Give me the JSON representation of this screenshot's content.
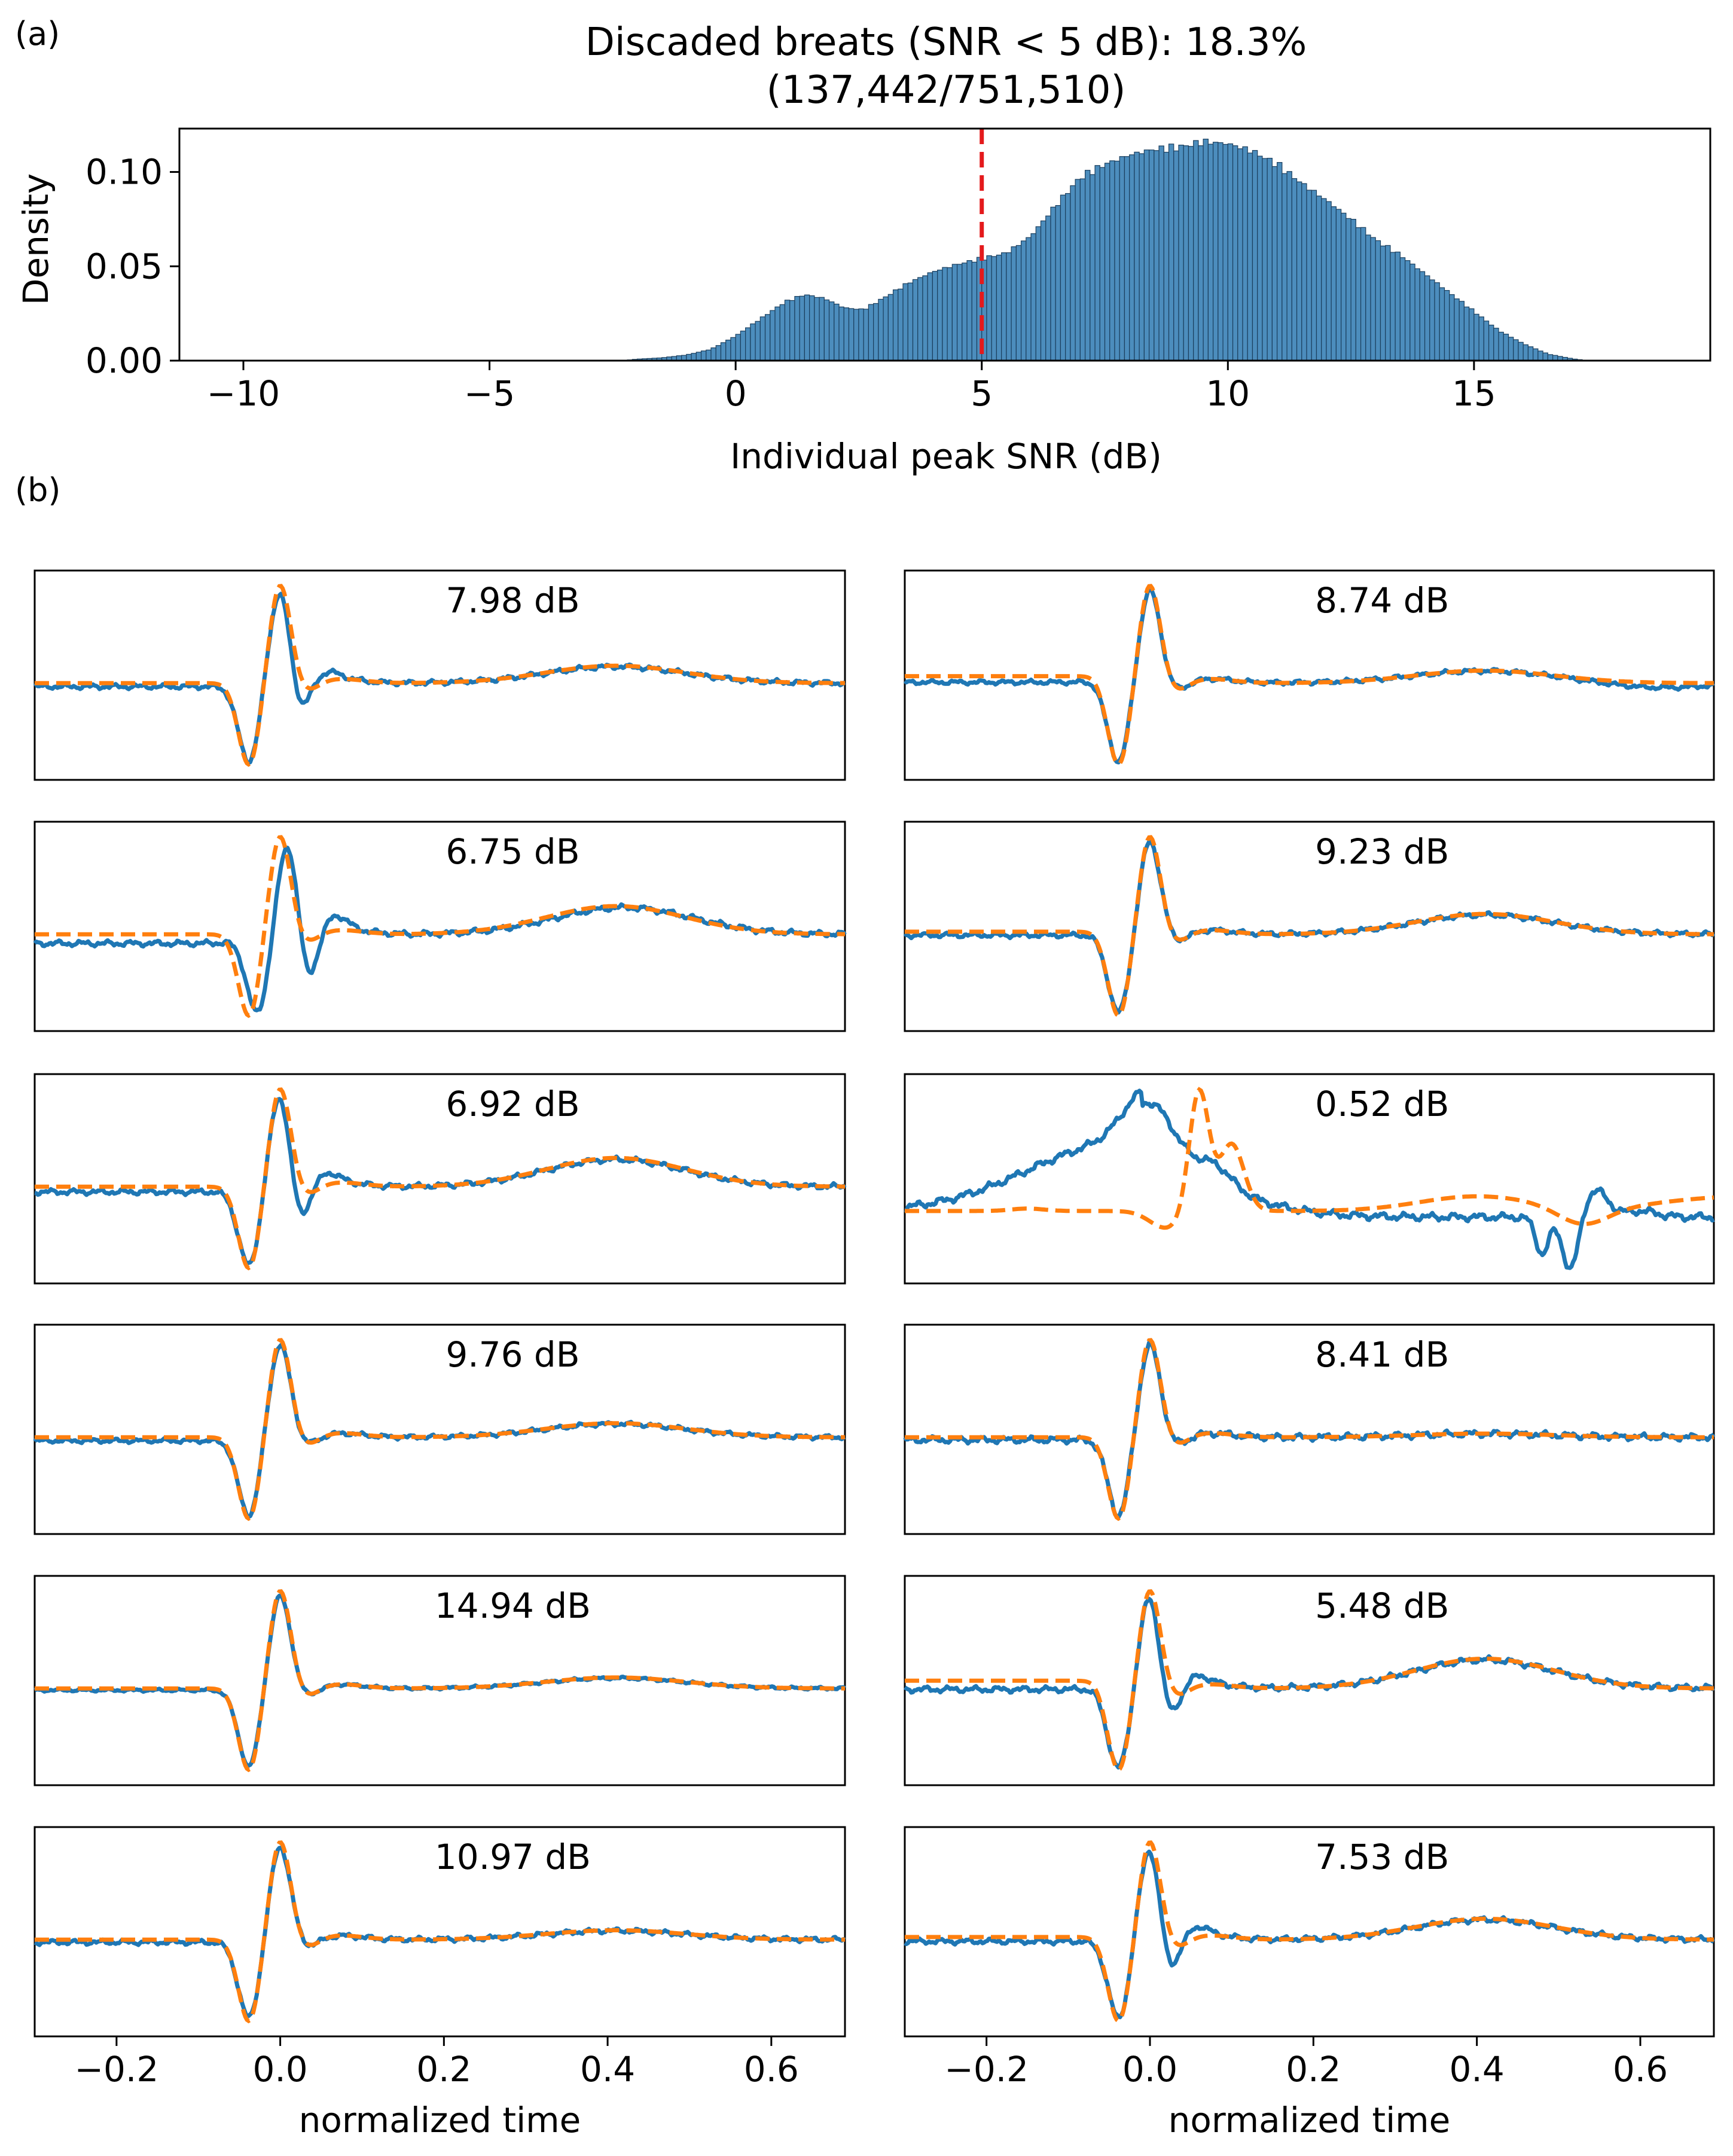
{
  "panel_labels": {
    "a": "(a)",
    "b": "(b)"
  },
  "colors": {
    "signal": "#1f77b4",
    "template": "#ff7f0e",
    "threshold": "#e41a1c",
    "bar_fill": "#4c8dbd",
    "bar_edge": "#1b3f5e"
  },
  "chart_data": [
    {
      "type": "bar",
      "subtype": "histogram",
      "title_line1": "Discaded breats (SNR < 5 dB): 18.3%",
      "title_line2": "(137,442/751,510)",
      "xlabel": "Individual peak SNR (dB)",
      "ylabel": "Density",
      "xlim": [
        -11.3,
        19.8
      ],
      "ylim": [
        0,
        0.123
      ],
      "x_ticks": [
        -10,
        -5,
        0,
        5,
        10,
        15
      ],
      "x_tick_labels": [
        "−10",
        "−5",
        "0",
        "5",
        "10",
        "15"
      ],
      "y_ticks": [
        0,
        0.05,
        0.1
      ],
      "y_tick_labels": [
        "0.00",
        "0.05",
        "0.10"
      ],
      "threshold_line": 5,
      "density_profile": [
        [
          -2.3,
          0.0
        ],
        [
          -2.0,
          0.0008
        ],
        [
          -1.5,
          0.0015
        ],
        [
          -1.0,
          0.003
        ],
        [
          -0.5,
          0.006
        ],
        [
          0.0,
          0.013
        ],
        [
          0.5,
          0.022
        ],
        [
          1.0,
          0.031
        ],
        [
          1.4,
          0.035
        ],
        [
          1.8,
          0.033
        ],
        [
          2.2,
          0.028
        ],
        [
          2.6,
          0.027
        ],
        [
          3.0,
          0.033
        ],
        [
          3.5,
          0.041
        ],
        [
          4.0,
          0.047
        ],
        [
          4.5,
          0.051
        ],
        [
          5.0,
          0.054
        ],
        [
          5.5,
          0.057
        ],
        [
          6.0,
          0.066
        ],
        [
          6.5,
          0.082
        ],
        [
          7.0,
          0.097
        ],
        [
          7.5,
          0.104
        ],
        [
          8.0,
          0.109
        ],
        [
          8.5,
          0.112
        ],
        [
          9.0,
          0.113
        ],
        [
          9.5,
          0.116
        ],
        [
          10.0,
          0.115
        ],
        [
          10.5,
          0.111
        ],
        [
          11.0,
          0.104
        ],
        [
          11.5,
          0.094
        ],
        [
          12.0,
          0.085
        ],
        [
          12.5,
          0.075
        ],
        [
          13.0,
          0.064
        ],
        [
          13.5,
          0.056
        ],
        [
          14.0,
          0.046
        ],
        [
          14.5,
          0.036
        ],
        [
          15.0,
          0.026
        ],
        [
          15.5,
          0.016
        ],
        [
          16.0,
          0.009
        ],
        [
          16.5,
          0.0035
        ],
        [
          17.0,
          0.001
        ],
        [
          17.3,
          0.0
        ]
      ]
    },
    {
      "type": "line",
      "xlabel": "normalized time",
      "xlim": [
        -0.3,
        0.69
      ],
      "x_ticks": [
        -0.2,
        0.0,
        0.2,
        0.4,
        0.6
      ],
      "x_tick_labels": [
        "−0.2",
        "0.0",
        "0.2",
        "0.4",
        "0.6"
      ],
      "series_styles": {
        "signal": "solid",
        "template": "dashed"
      },
      "panels": [
        {
          "label": "7.98 dB",
          "col": 0,
          "row": 0,
          "base": 0.0,
          "amp": 1.0,
          "tw": 0.2,
          "twAmp": 1.0,
          "extra": 0.55,
          "noise": 0.9,
          "tail": 0.0,
          "off": 0.04,
          "shift": 0.0
        },
        {
          "label": "8.74 dB",
          "col": 1,
          "row": 0,
          "base": -0.08,
          "amp": 1.0,
          "tw": 0.16,
          "twAmp": 0.9,
          "extra": 0.0,
          "noise": 0.8,
          "tail": -0.06,
          "off": 0.07,
          "shift": 0.0
        },
        {
          "label": "6.75 dB",
          "col": 0,
          "row": 1,
          "base": 0.0,
          "amp": 0.95,
          "tw": 0.28,
          "twAmp": 1.1,
          "extra": 0.95,
          "noise": 1.0,
          "tail": 0.0,
          "off": 0.1,
          "shift": 0.01
        },
        {
          "label": "9.23 dB",
          "col": 1,
          "row": 1,
          "base": -0.03,
          "amp": 1.0,
          "tw": 0.26,
          "twAmp": 0.9,
          "extra": 0.0,
          "noise": 0.9,
          "tail": 0.0,
          "off": 0.04,
          "shift": 0.0
        },
        {
          "label": "6.92 dB",
          "col": 0,
          "row": 2,
          "base": 0.0,
          "amp": 1.0,
          "tw": 0.3,
          "twAmp": 1.1,
          "extra": 0.7,
          "noise": 1.0,
          "tail": 0.0,
          "off": 0.06,
          "shift": 0.0
        },
        {
          "label": "0.52 dB",
          "col": 1,
          "row": 2,
          "base": 0.0,
          "amp": 1.0,
          "tw": 0.15,
          "twAmp": 0.7,
          "extra": 0.0,
          "noise": 1.0,
          "tail": 0.0,
          "off": 0.0,
          "shift": 0.0
        },
        {
          "label": "9.76 dB",
          "col": 0,
          "row": 3,
          "base": 0.0,
          "amp": 1.0,
          "tw": 0.18,
          "twAmp": 0.9,
          "extra": 0.0,
          "noise": 0.8,
          "tail": 0.0,
          "off": 0.04,
          "shift": 0.0
        },
        {
          "label": "8.41 dB",
          "col": 1,
          "row": 3,
          "base": 0.0,
          "amp": 1.0,
          "tw": 0.07,
          "twAmp": 0.6,
          "extra": 0.0,
          "noise": 1.2,
          "tail": 0.0,
          "off": 0.03,
          "shift": 0.0
        },
        {
          "label": "14.94 dB",
          "col": 0,
          "row": 4,
          "base": 0.0,
          "amp": 1.0,
          "tw": 0.14,
          "twAmp": 0.9,
          "extra": 0.0,
          "noise": 0.5,
          "tail": 0.0,
          "off": 0.02,
          "shift": 0.0
        },
        {
          "label": "5.48 dB",
          "col": 1,
          "row": 4,
          "base": -0.08,
          "amp": 0.9,
          "tw": 0.28,
          "twAmp": 1.1,
          "extra": 0.55,
          "noise": 1.0,
          "tail": 0.0,
          "off": 0.09,
          "shift": 0.0
        },
        {
          "label": "10.97 dB",
          "col": 0,
          "row": 5,
          "base": 0.0,
          "amp": 1.0,
          "tw": 0.12,
          "twAmp": 0.9,
          "extra": 0.0,
          "noise": 0.9,
          "tail": 0.0,
          "off": 0.03,
          "shift": 0.0
        },
        {
          "label": "7.53 dB",
          "col": 1,
          "row": 5,
          "base": -0.03,
          "amp": 1.0,
          "tw": 0.24,
          "twAmp": 1.0,
          "extra": 0.65,
          "noise": 1.0,
          "tail": 0.0,
          "off": 0.05,
          "shift": 0.0
        }
      ]
    }
  ]
}
